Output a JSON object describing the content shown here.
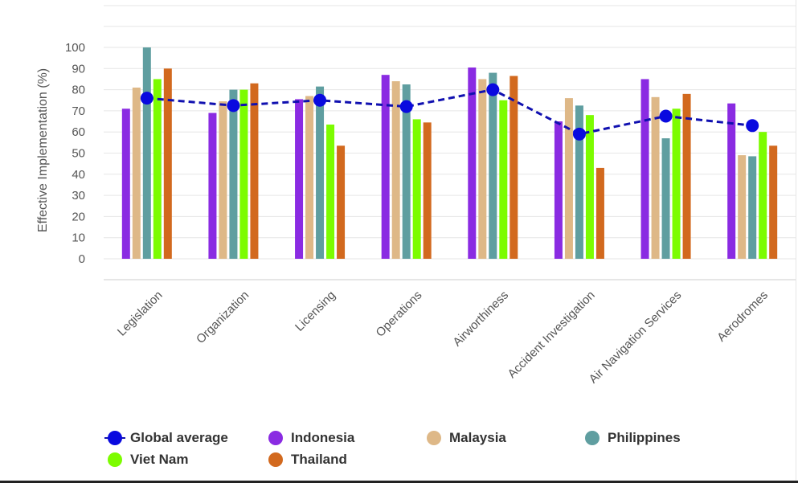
{
  "chart_data": {
    "type": "bar",
    "title": "",
    "xlabel": "",
    "ylabel": "Effective Implementation (%)",
    "ylim": [
      0,
      100
    ],
    "yticks": [
      0,
      10,
      20,
      30,
      40,
      50,
      60,
      70,
      80,
      90,
      100
    ],
    "grid": true,
    "legend_position": "bottom",
    "categories": [
      "Legislation",
      "Organization",
      "Licensing",
      "Operations",
      "Airworthiness",
      "Accident Investigation",
      "Air Navigation Services",
      "Aerodromes"
    ],
    "global_average": {
      "name": "Global average",
      "type": "line",
      "color": "#0a0adf",
      "values": [
        76,
        72.5,
        75,
        72,
        80,
        59,
        67.5,
        63
      ]
    },
    "series": [
      {
        "name": "Indonesia",
        "color": "#8a2be2",
        "values": [
          71,
          69,
          75.5,
          87,
          90.5,
          65,
          85,
          73.5
        ]
      },
      {
        "name": "Malaysia",
        "color": "#deb887",
        "values": [
          81,
          74.5,
          77,
          84,
          85,
          76,
          76.5,
          49
        ]
      },
      {
        "name": "Philippines",
        "color": "#5f9ea0",
        "values": [
          100,
          80,
          81.5,
          82.5,
          88,
          72.5,
          57,
          48.5
        ]
      },
      {
        "name": "Viet Nam",
        "color": "#7cfc00",
        "values": [
          85,
          80,
          63.5,
          66,
          75,
          68,
          71,
          60
        ]
      },
      {
        "name": "Thailand",
        "color": "#d2691e",
        "values": [
          90,
          83,
          53.5,
          64.5,
          86.5,
          43,
          78,
          53.5
        ]
      }
    ]
  },
  "legend": {
    "items": [
      "Global average",
      "Indonesia",
      "Malaysia",
      "Philippines",
      "Viet Nam",
      "Thailand"
    ]
  }
}
